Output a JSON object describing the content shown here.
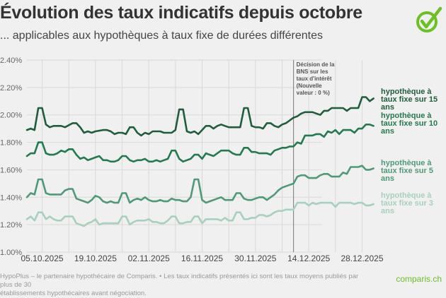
{
  "header": {
    "title": "Évolution des taux indicatifs depuis octobre",
    "subtitle": "... applicables aux hypothèques à taux fixe de durées différentes"
  },
  "logo": {
    "icon": "check-circle-icon",
    "color": "#6cc024"
  },
  "footer": {
    "note_line1": "HypoPlus – le partenaire hypothécaire de Comparis. • Les taux indicatifs présentés ici sont les taux moyens publiés par plus de 30",
    "note_line2": "établissements hypothécaires avant négociation.",
    "brand": "comparis.ch"
  },
  "chart_data": {
    "type": "line",
    "title": "Évolution des taux indicatifs depuis octobre",
    "subtitle": "... applicables aux hypothèques à taux fixe de durées différentes",
    "xlabel": "",
    "ylabel": "",
    "ylim": [
      1.0,
      2.4
    ],
    "yticks": [
      1.0,
      1.2,
      1.4,
      1.6,
      1.8,
      2.0,
      2.2,
      2.4
    ],
    "ytick_labels": [
      "1.00%",
      "1.20%",
      "1.40%",
      "1.60%",
      "1.80%",
      "2.00%",
      "2.20%",
      "2.40%"
    ],
    "xlim_days": [
      0,
      92
    ],
    "x_unit": "days since 01.10.2025",
    "xticks_days": [
      4,
      18,
      32,
      46,
      60,
      74,
      88
    ],
    "xtick_labels": [
      "05.10.2025",
      "19.10.2025",
      "02.11.2025",
      "16.11.2025",
      "30.11.2025",
      "14.12.2025",
      "28.12.2025"
    ],
    "grid": true,
    "annotation": {
      "day": 70,
      "text_lines": [
        "Décision de la",
        "BNS sur les",
        "taux d'intérêt",
        "(Nouvelle",
        "valeur : 0 %)"
      ]
    },
    "series": [
      {
        "name": "hypothèque à taux fixe sur 15 ans",
        "label_lines": [
          "hypothèque à",
          "taux fixe sur 15",
          "ans"
        ],
        "color": "#1e5e3c",
        "x": [
          0,
          1,
          2,
          3,
          4,
          5,
          6,
          7,
          8,
          9,
          10,
          12,
          13,
          14,
          15,
          16,
          17,
          18,
          20,
          21,
          22,
          23,
          24,
          25,
          26,
          27,
          28,
          29,
          30,
          31,
          32,
          33,
          34,
          35,
          36,
          37,
          38,
          39,
          40,
          41,
          42,
          43,
          44,
          45,
          46,
          47,
          48,
          49,
          50,
          51,
          52,
          53,
          54,
          55,
          56,
          57,
          58,
          59,
          60,
          61,
          62,
          63,
          64,
          65,
          66,
          67,
          68,
          69,
          70,
          71,
          72,
          73,
          74,
          75,
          76,
          77,
          78,
          79,
          80,
          81,
          82,
          83,
          84,
          85,
          86,
          87,
          88,
          89,
          90,
          91
        ],
        "values": [
          1.89,
          1.9,
          1.89,
          2.05,
          2.05,
          1.93,
          1.91,
          1.92,
          1.92,
          1.92,
          1.91,
          1.94,
          1.94,
          1.91,
          1.87,
          1.88,
          1.87,
          1.88,
          1.89,
          1.89,
          1.88,
          1.86,
          1.87,
          1.87,
          1.86,
          1.91,
          1.91,
          1.87,
          1.85,
          1.87,
          1.86,
          1.88,
          1.88,
          1.88,
          1.87,
          1.87,
          1.87,
          1.89,
          2.04,
          2.04,
          1.88,
          1.87,
          1.88,
          1.86,
          1.89,
          1.92,
          1.92,
          1.9,
          1.92,
          1.93,
          1.92,
          1.91,
          1.91,
          1.91,
          1.91,
          2.05,
          2.05,
          1.92,
          1.91,
          1.91,
          1.9,
          1.94,
          1.94,
          1.92,
          1.91,
          1.93,
          1.94,
          1.96,
          1.98,
          1.99,
          2.01,
          2.02,
          2.02,
          2.02,
          2.01,
          2.0,
          2.03,
          2.03,
          2.05,
          2.05,
          2.05,
          2.05,
          2.03,
          2.05,
          2.05,
          2.05,
          2.13,
          2.13,
          2.1,
          2.12
        ]
      },
      {
        "name": "hypothèque à taux fixe sur 10 ans",
        "label_lines": [
          "hypothèque à",
          "taux fixe sur 10",
          "ans"
        ],
        "color": "#227a4e",
        "x": [
          0,
          1,
          2,
          3,
          4,
          5,
          6,
          7,
          8,
          9,
          10,
          11,
          12,
          13,
          14,
          15,
          16,
          17,
          18,
          19,
          20,
          21,
          22,
          23,
          24,
          25,
          26,
          27,
          28,
          29,
          30,
          31,
          32,
          33,
          34,
          35,
          36,
          37,
          38,
          39,
          40,
          41,
          42,
          43,
          44,
          45,
          46,
          47,
          48,
          49,
          50,
          51,
          52,
          53,
          54,
          55,
          56,
          57,
          58,
          59,
          60,
          61,
          62,
          63,
          64,
          65,
          66,
          67,
          68,
          69,
          70,
          71,
          72,
          73,
          74,
          75,
          76,
          77,
          78,
          79,
          80,
          81,
          82,
          83,
          84,
          85,
          86,
          87,
          88,
          89,
          90,
          91
        ],
        "values": [
          1.7,
          1.72,
          1.72,
          1.8,
          1.8,
          1.72,
          1.71,
          1.71,
          1.72,
          1.74,
          1.73,
          1.75,
          1.75,
          1.71,
          1.68,
          1.69,
          1.67,
          1.68,
          1.69,
          1.7,
          1.67,
          1.67,
          1.66,
          1.66,
          1.67,
          1.7,
          1.7,
          1.67,
          1.66,
          1.67,
          1.67,
          1.68,
          1.66,
          1.66,
          1.67,
          1.66,
          1.67,
          1.68,
          1.74,
          1.74,
          1.68,
          1.66,
          1.67,
          1.68,
          1.71,
          1.71,
          1.68,
          1.72,
          1.71,
          1.7,
          1.72,
          1.74,
          1.74,
          1.74,
          1.72,
          1.71,
          1.71,
          1.76,
          1.76,
          1.73,
          1.73,
          1.72,
          1.72,
          1.72,
          1.71,
          1.74,
          1.75,
          1.76,
          1.76,
          1.77,
          1.77,
          1.8,
          1.79,
          1.85,
          1.85,
          1.85,
          1.86,
          1.86,
          1.84,
          1.88,
          1.87,
          1.89,
          1.86,
          1.89,
          1.89,
          1.89,
          1.87,
          1.9,
          1.9,
          1.93,
          1.93,
          1.92
        ]
      },
      {
        "name": "hypothèque à taux fixe sur 5 ans",
        "label_lines": [
          "hypothèque à",
          "taux fixe sur 5",
          "ans"
        ],
        "color": "#4e9a78",
        "x": [
          0,
          1,
          2,
          3,
          4,
          5,
          6,
          7,
          8,
          9,
          10,
          11,
          12,
          13,
          14,
          15,
          16,
          17,
          18,
          19,
          20,
          21,
          22,
          23,
          24,
          25,
          26,
          27,
          28,
          29,
          30,
          31,
          32,
          33,
          34,
          35,
          36,
          37,
          38,
          39,
          40,
          41,
          42,
          43,
          44,
          45,
          46,
          47,
          48,
          49,
          50,
          51,
          52,
          53,
          54,
          55,
          56,
          57,
          58,
          59,
          60,
          61,
          62,
          63,
          64,
          65,
          66,
          67,
          68,
          69,
          70,
          71,
          72,
          73,
          74,
          75,
          76,
          77,
          78,
          79,
          80,
          81,
          82,
          83,
          84,
          85,
          86,
          87,
          88,
          89,
          90,
          91
        ],
        "values": [
          1.4,
          1.43,
          1.42,
          1.53,
          1.53,
          1.43,
          1.42,
          1.42,
          1.42,
          1.42,
          1.45,
          1.46,
          1.46,
          1.39,
          1.38,
          1.37,
          1.36,
          1.38,
          1.41,
          1.4,
          1.37,
          1.36,
          1.37,
          1.36,
          1.36,
          1.43,
          1.43,
          1.36,
          1.38,
          1.39,
          1.38,
          1.4,
          1.38,
          1.37,
          1.37,
          1.38,
          1.37,
          1.37,
          1.39,
          1.38,
          1.38,
          1.37,
          1.37,
          1.4,
          1.53,
          1.53,
          1.38,
          1.36,
          1.37,
          1.38,
          1.39,
          1.4,
          1.38,
          1.38,
          1.38,
          1.43,
          1.43,
          1.39,
          1.38,
          1.38,
          1.39,
          1.4,
          1.4,
          1.38,
          1.4,
          1.42,
          1.45,
          1.47,
          1.48,
          1.49,
          1.5,
          1.55,
          1.56,
          1.56,
          1.54,
          1.54,
          1.54,
          1.56,
          1.57,
          1.57,
          1.55,
          1.55,
          1.55,
          1.58,
          1.57,
          1.62,
          1.62,
          1.62,
          1.63,
          1.6,
          1.6,
          1.61
        ]
      },
      {
        "name": "hypothèque à taux fixe sur 3 ans",
        "label_lines": [
          "hypothèque à",
          "taux fixe sur 3",
          "ans"
        ],
        "color": "#a6d1bd",
        "x": [
          0,
          1,
          2,
          3,
          4,
          5,
          6,
          7,
          8,
          9,
          10,
          11,
          12,
          13,
          14,
          15,
          16,
          17,
          18,
          19,
          20,
          21,
          22,
          23,
          24,
          25,
          26,
          27,
          28,
          29,
          30,
          31,
          32,
          33,
          34,
          35,
          36,
          37,
          38,
          39,
          40,
          41,
          42,
          43,
          44,
          45,
          46,
          47,
          48,
          49,
          50,
          51,
          52,
          53,
          54,
          55,
          56,
          57,
          58,
          59,
          60,
          61,
          62,
          63,
          64,
          65,
          66,
          67,
          68,
          69,
          70,
          71,
          72,
          73,
          74,
          75,
          76,
          77,
          78,
          79,
          80,
          81,
          82,
          83,
          84,
          85,
          86,
          87,
          88,
          89,
          90,
          91
        ],
        "values": [
          1.24,
          1.26,
          1.23,
          1.29,
          1.29,
          1.24,
          1.26,
          1.24,
          1.23,
          1.23,
          1.26,
          1.26,
          1.26,
          1.21,
          1.2,
          1.19,
          1.21,
          1.22,
          1.24,
          1.2,
          1.21,
          1.21,
          1.21,
          1.21,
          1.21,
          1.26,
          1.26,
          1.2,
          1.22,
          1.23,
          1.23,
          1.23,
          1.24,
          1.22,
          1.22,
          1.21,
          1.21,
          1.23,
          1.26,
          1.26,
          1.21,
          1.21,
          1.22,
          1.22,
          1.26,
          1.26,
          1.21,
          1.24,
          1.24,
          1.24,
          1.24,
          1.23,
          1.25,
          1.23,
          1.23,
          1.29,
          1.29,
          1.24,
          1.24,
          1.25,
          1.25,
          1.27,
          1.27,
          1.26,
          1.27,
          1.29,
          1.3,
          1.3,
          1.31,
          1.31,
          1.31,
          1.36,
          1.36,
          1.36,
          1.34,
          1.36,
          1.35,
          1.36,
          1.36,
          1.36,
          1.36,
          1.33,
          1.36,
          1.36,
          1.36,
          1.36,
          1.35,
          1.36,
          1.36,
          1.34,
          1.34,
          1.35
        ]
      }
    ]
  }
}
